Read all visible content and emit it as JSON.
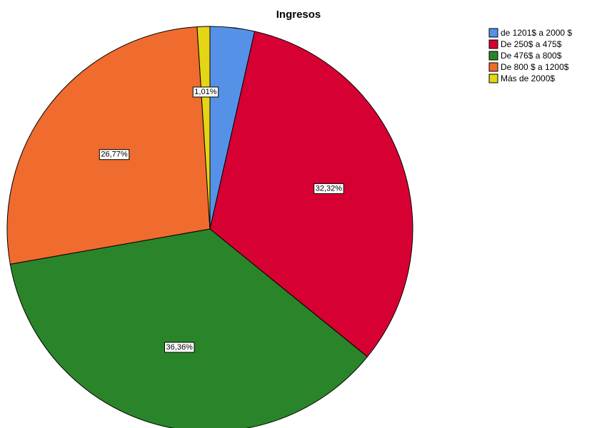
{
  "chart_data": {
    "type": "pie",
    "title": "Ingresos",
    "slices": [
      {
        "label": "de 1201$ a 2000 $",
        "value": 3.54,
        "color": "#5591e7"
      },
      {
        "label": "De 250$ a 475$",
        "value": 32.32,
        "data_label": "32,32%",
        "color": "#d70032"
      },
      {
        "label": "De 476$ a 800$",
        "value": 36.36,
        "data_label": "36,36%",
        "color": "#2a852a"
      },
      {
        "label": "De 800 $ a 1200$",
        "value": 26.77,
        "data_label": "26,77%",
        "color": "#f06b2e"
      },
      {
        "label": "Más de 2000$",
        "value": 1.01,
        "data_label": "1,01%",
        "color": "#e4d515"
      }
    ],
    "legend_position": "top-right",
    "start_angle_deg": 0,
    "direction": "clockwise"
  }
}
